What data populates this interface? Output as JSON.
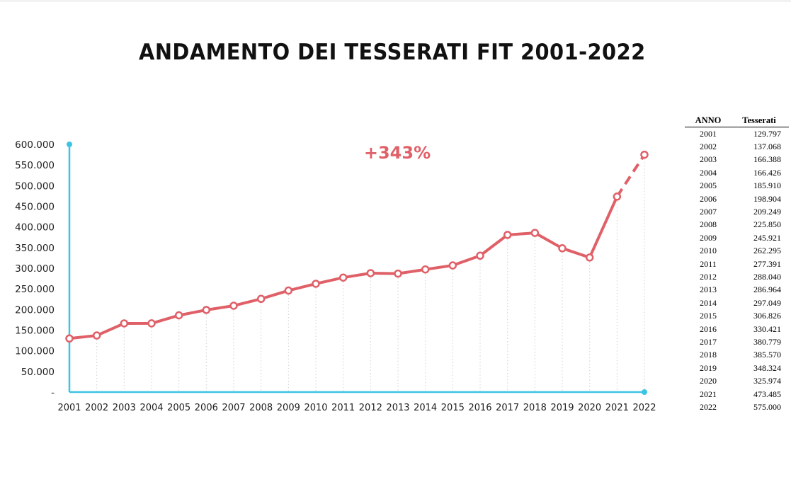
{
  "colors": {
    "line": "#e06068",
    "axis": "#3cc4e4",
    "grid": "#d0d0d0",
    "text": "#222222"
  },
  "chart_data": {
    "type": "line",
    "title": "ANDAMENTO DEI TESSERATI FIT 2001-2022",
    "xlabel": "",
    "ylabel": "",
    "ylim": [
      0,
      600000
    ],
    "y_ticks": [
      0,
      50000,
      100000,
      150000,
      200000,
      250000,
      300000,
      350000,
      400000,
      450000,
      500000,
      550000,
      600000
    ],
    "y_tick_labels": [
      "-",
      "50.000",
      "100.000",
      "150.000",
      "200.000",
      "250.000",
      "300.000",
      "350.000",
      "400.000",
      "450.000",
      "500.000",
      "550.000",
      "600.000"
    ],
    "x": [
      "2001",
      "2002",
      "2003",
      "2004",
      "2005",
      "2006",
      "2007",
      "2008",
      "2009",
      "2010",
      "2011",
      "2012",
      "2013",
      "2014",
      "2015",
      "2016",
      "2017",
      "2018",
      "2019",
      "2020",
      "2021",
      "2022"
    ],
    "values": [
      129797,
      137068,
      166388,
      166426,
      185910,
      198904,
      209249,
      225850,
      245921,
      262295,
      277391,
      288040,
      286964,
      297049,
      306826,
      330421,
      380779,
      385570,
      348324,
      325974,
      473485,
      575000
    ],
    "dashed_last_segment": true,
    "vertical_gridlines": "dotted",
    "annotation": "+343%"
  },
  "table": {
    "headers": {
      "anno": "ANNO",
      "tesserati": "Tesserati"
    },
    "rows": [
      {
        "anno": "2001",
        "tesserati": "129.797"
      },
      {
        "anno": "2002",
        "tesserati": "137.068"
      },
      {
        "anno": "2003",
        "tesserati": "166.388"
      },
      {
        "anno": "2004",
        "tesserati": "166.426"
      },
      {
        "anno": "2005",
        "tesserati": "185.910"
      },
      {
        "anno": "2006",
        "tesserati": "198.904"
      },
      {
        "anno": "2007",
        "tesserati": "209.249"
      },
      {
        "anno": "2008",
        "tesserati": "225.850"
      },
      {
        "anno": "2009",
        "tesserati": "245.921"
      },
      {
        "anno": "2010",
        "tesserati": "262.295"
      },
      {
        "anno": "2011",
        "tesserati": "277.391"
      },
      {
        "anno": "2012",
        "tesserati": "288.040"
      },
      {
        "anno": "2013",
        "tesserati": "286.964"
      },
      {
        "anno": "2014",
        "tesserati": "297.049"
      },
      {
        "anno": "2015",
        "tesserati": "306.826"
      },
      {
        "anno": "2016",
        "tesserati": "330.421"
      },
      {
        "anno": "2017",
        "tesserati": "380.779"
      },
      {
        "anno": "2018",
        "tesserati": "385.570"
      },
      {
        "anno": "2019",
        "tesserati": "348.324"
      },
      {
        "anno": "2020",
        "tesserati": "325.974"
      },
      {
        "anno": "2021",
        "tesserati": "473.485"
      },
      {
        "anno": "2022",
        "tesserati": "575.000"
      }
    ]
  }
}
